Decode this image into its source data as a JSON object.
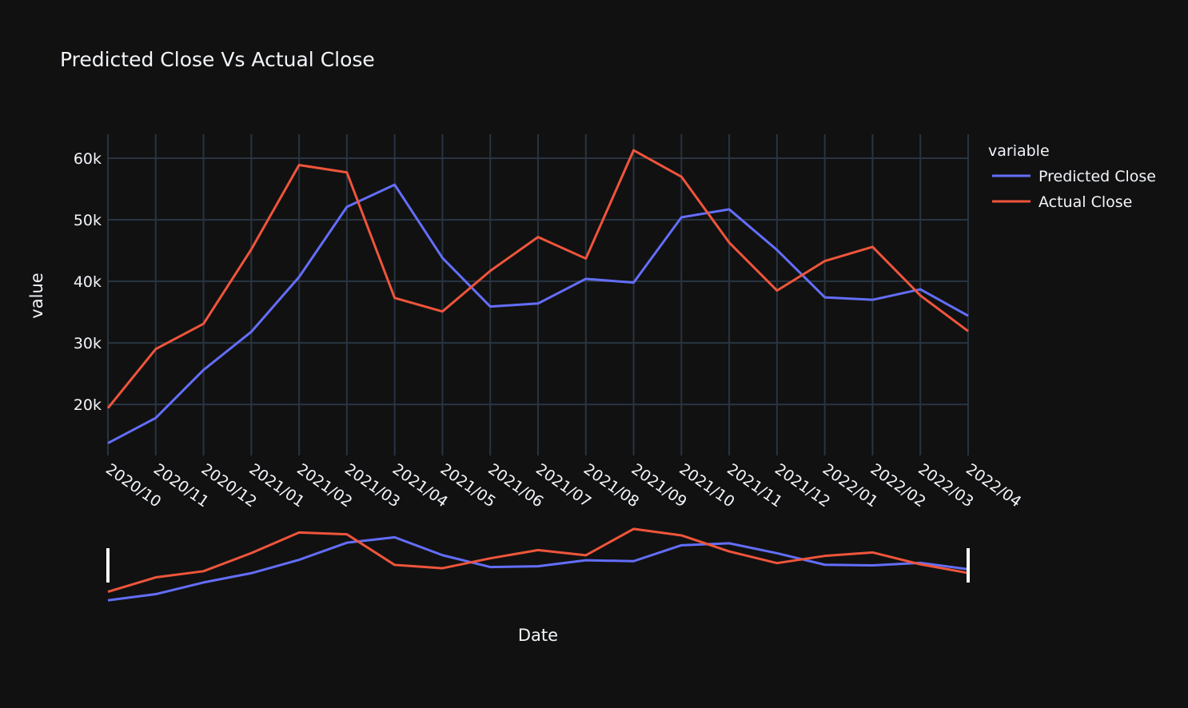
{
  "chart_data": {
    "type": "line",
    "title": "Predicted Close Vs Actual Close",
    "xlabel": "Date",
    "ylabel": "value",
    "categories": [
      "2020/10",
      "2020/11",
      "2020/12",
      "2021/01",
      "2021/02",
      "2021/03",
      "2021/04",
      "2021/05",
      "2021/06",
      "2021/07",
      "2021/08",
      "2021/09",
      "2021/10",
      "2021/11",
      "2021/12",
      "2022/01",
      "2022/02",
      "2022/03",
      "2022/04"
    ],
    "ylim": [
      11700,
      63900
    ],
    "yticks": [
      20000,
      30000,
      40000,
      50000,
      60000
    ],
    "ytick_labels": [
      "20k",
      "30k",
      "40k",
      "50k",
      "60k"
    ],
    "grid": true,
    "legend": {
      "title": "variable",
      "position": "top-right"
    },
    "range_slider": true,
    "series": [
      {
        "name": "Predicted Close",
        "color": "#636efa",
        "values": [
          13700,
          17800,
          25600,
          31800,
          40700,
          52100,
          55700,
          43800,
          35900,
          36400,
          40400,
          39800,
          50400,
          51700,
          45100,
          37400,
          37000,
          38700,
          34400
        ]
      },
      {
        "name": "Actual Close",
        "color": "#ef553b",
        "values": [
          19400,
          29000,
          33100,
          45200,
          58900,
          57700,
          37300,
          35100,
          41700,
          47200,
          43700,
          61300,
          57000,
          46300,
          38500,
          43300,
          45600,
          37700,
          31900
        ]
      }
    ]
  }
}
